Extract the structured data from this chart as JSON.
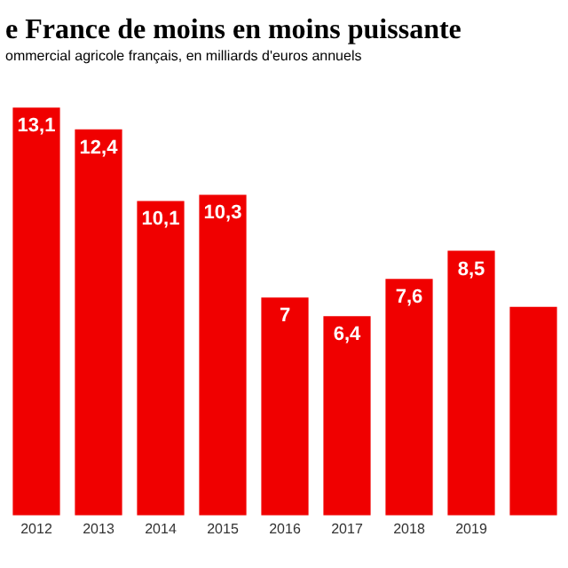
{
  "chart_data": {
    "type": "bar",
    "title": "e France de moins en moins puissante",
    "subtitle": "ommercial agricole français, en milliards d'euros annuels",
    "categories": [
      "2012",
      "2013",
      "2014",
      "2015",
      "2016",
      "2017",
      "2018",
      "2019",
      null
    ],
    "values": [
      13.1,
      12.4,
      10.1,
      10.3,
      7,
      6.4,
      7.6,
      8.5,
      6.7
    ],
    "value_labels": [
      "13,1",
      "12,4",
      "10,1",
      "10,3",
      "7",
      "6,4",
      "7,6",
      "8,5",
      null
    ],
    "color": "#f00000",
    "grid": false,
    "legend": false
  }
}
